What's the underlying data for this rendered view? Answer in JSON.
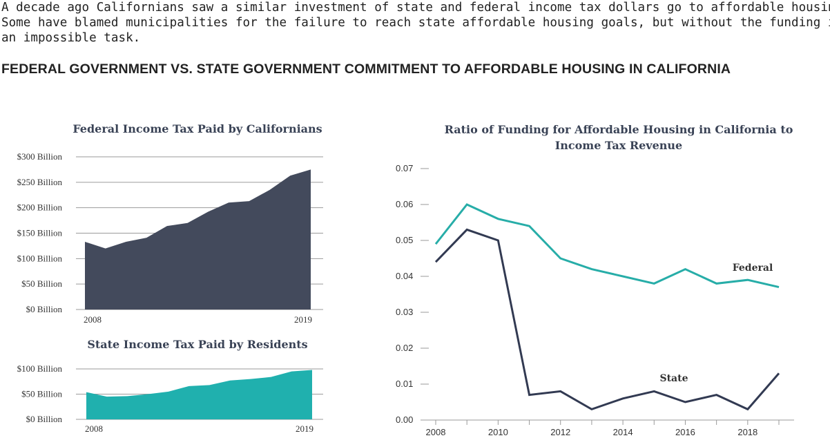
{
  "intro": {
    "lines": [
      "A decade ago Californians saw a similar investment of state and federal income tax dollars go to affordable housing.",
      "Some have blamed municipalities for the failure to reach state affordable housing goals, but without the funding it is",
      "an impossible task."
    ]
  },
  "headline": "FEDERAL GOVERNMENT VS. STATE GOVERNMENT COMMITMENT TO AFFORDABLE HOUSING IN CALIFORNIA",
  "colors": {
    "federal_area": "#434a5c",
    "state_area": "#20b0ae",
    "federal_line": "#27ada8",
    "state_line": "#323a52"
  },
  "chart_data": [
    {
      "type": "area",
      "title": "Federal Income Tax Paid by Californians",
      "x": [
        2008,
        2009,
        2010,
        2011,
        2012,
        2013,
        2014,
        2015,
        2016,
        2017,
        2018,
        2019
      ],
      "values": [
        133,
        120,
        133,
        141,
        164,
        170,
        192,
        210,
        213,
        235,
        263,
        275
      ],
      "yunit": "Billion USD",
      "ylim": [
        0,
        300
      ],
      "yticks": [
        0,
        50,
        100,
        150,
        200,
        250,
        300
      ],
      "ytick_labels": [
        "$0 Billion",
        "$50 Billion",
        "$100 Billion",
        "$150 Billion",
        "$200 Billion",
        "$250 Billion",
        "$300 Billion"
      ],
      "xtick_labels": [
        "2008",
        "2019"
      ],
      "grid": true
    },
    {
      "type": "area",
      "title": "State Income Tax Paid by Residents",
      "x": [
        2008,
        2009,
        2010,
        2011,
        2012,
        2013,
        2014,
        2015,
        2016,
        2017,
        2018,
        2019
      ],
      "values": [
        54,
        45,
        46,
        50,
        55,
        66,
        68,
        77,
        80,
        84,
        95,
        98
      ],
      "yunit": "Billion USD",
      "ylim": [
        0,
        100
      ],
      "yticks": [
        0,
        50,
        100
      ],
      "ytick_labels": [
        "$0 Billion",
        "$50 Billion",
        "$100 Billion"
      ],
      "xtick_labels": [
        "2008",
        "2019"
      ],
      "grid": true
    },
    {
      "type": "line",
      "title_lines": [
        "Ratio of Funding for Affordable Housing in California to",
        "Income Tax Revenue"
      ],
      "x": [
        2008,
        2009,
        2010,
        2011,
        2012,
        2013,
        2014,
        2015,
        2016,
        2017,
        2018,
        2019
      ],
      "series": [
        {
          "name": "Federal",
          "values": [
            0.049,
            0.06,
            0.056,
            0.054,
            0.045,
            0.042,
            0.04,
            0.038,
            0.042,
            0.038,
            0.039,
            0.037
          ]
        },
        {
          "name": "State",
          "values": [
            0.044,
            0.053,
            0.05,
            0.007,
            0.008,
            0.003,
            0.006,
            0.008,
            0.005,
            0.007,
            0.003,
            0.013
          ]
        }
      ],
      "ylim": [
        0,
        0.07
      ],
      "yticks": [
        "0.00",
        "0.01",
        "0.02",
        "0.03",
        "0.04",
        "0.05",
        "0.06",
        "0.07"
      ],
      "xtick_labels": [
        "2008",
        "2010",
        "2012",
        "2014",
        "2016",
        "2018"
      ],
      "grid": false
    }
  ]
}
